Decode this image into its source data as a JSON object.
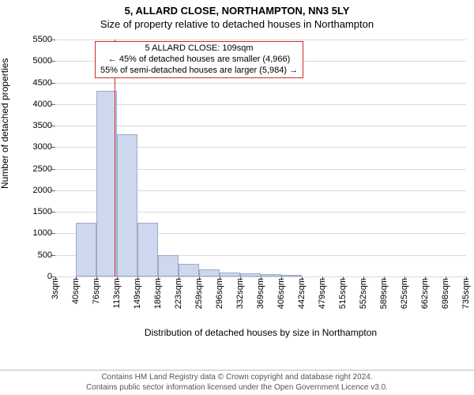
{
  "title": {
    "line1": "5, ALLARD CLOSE, NORTHAMPTON, NN3 5LY",
    "line2": "Size of property relative to detached houses in Northampton"
  },
  "y_axis": {
    "label": "Number of detached properties",
    "min": 0,
    "max": 5500,
    "ticks": [
      0,
      500,
      1000,
      1500,
      2000,
      2500,
      3000,
      3500,
      4000,
      4500,
      5000,
      5500
    ],
    "grid_color": "#d9d9d9"
  },
  "x_axis": {
    "label": "Distribution of detached houses by size in Northampton",
    "tick_labels": [
      "3sqm",
      "40sqm",
      "76sqm",
      "113sqm",
      "149sqm",
      "186sqm",
      "223sqm",
      "259sqm",
      "296sqm",
      "332sqm",
      "369sqm",
      "406sqm",
      "442sqm",
      "479sqm",
      "515sqm",
      "552sqm",
      "589sqm",
      "625sqm",
      "662sqm",
      "698sqm",
      "735sqm"
    ],
    "tick_positions": [
      3,
      40,
      76,
      113,
      149,
      186,
      223,
      259,
      296,
      332,
      369,
      406,
      442,
      479,
      515,
      552,
      589,
      625,
      662,
      698,
      735
    ],
    "data_min": 3,
    "data_max": 735
  },
  "histogram": {
    "type": "histogram",
    "bin_width_units": 36.6,
    "fill_color": "#cdd8ee",
    "border_color": "#9aa9c9",
    "bins": [
      {
        "start": 3,
        "count": 0
      },
      {
        "start": 40,
        "count": 1250
      },
      {
        "start": 76,
        "count": 4300
      },
      {
        "start": 113,
        "count": 3300
      },
      {
        "start": 149,
        "count": 1250
      },
      {
        "start": 186,
        "count": 500
      },
      {
        "start": 223,
        "count": 300
      },
      {
        "start": 259,
        "count": 160
      },
      {
        "start": 296,
        "count": 100
      },
      {
        "start": 332,
        "count": 70
      },
      {
        "start": 369,
        "count": 50
      },
      {
        "start": 406,
        "count": 40
      },
      {
        "start": 442,
        "count": 0
      },
      {
        "start": 479,
        "count": 0
      },
      {
        "start": 515,
        "count": 0
      },
      {
        "start": 552,
        "count": 0
      },
      {
        "start": 589,
        "count": 0
      },
      {
        "start": 625,
        "count": 0
      },
      {
        "start": 662,
        "count": 0
      },
      {
        "start": 698,
        "count": 0
      }
    ]
  },
  "reference_line": {
    "value": 109,
    "color": "#cc2b2b",
    "width": 1
  },
  "annotation": {
    "border_color": "#cc2b2b",
    "line1": "5 ALLARD CLOSE: 109sqm",
    "line2": "← 45% of detached houses are smaller (4,966)",
    "line3": "55% of semi-detached houses are larger (5,984) →"
  },
  "footer": {
    "line1": "Contains HM Land Registry data © Crown copyright and database right 2024.",
    "line2": "Contains public sector information licensed under the Open Government Licence v3.0."
  }
}
